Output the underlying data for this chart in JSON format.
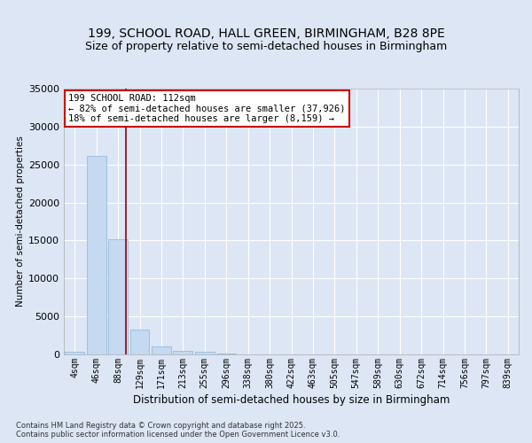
{
  "title1": "199, SCHOOL ROAD, HALL GREEN, BIRMINGHAM, B28 8PE",
  "title2": "Size of property relative to semi-detached houses in Birmingham",
  "xlabel": "Distribution of semi-detached houses by size in Birmingham",
  "ylabel": "Number of semi-detached properties",
  "footnote": "Contains HM Land Registry data © Crown copyright and database right 2025.\nContains public sector information licensed under the Open Government Licence v3.0.",
  "bin_labels": [
    "4sqm",
    "46sqm",
    "88sqm",
    "129sqm",
    "171sqm",
    "213sqm",
    "255sqm",
    "296sqm",
    "338sqm",
    "380sqm",
    "422sqm",
    "463sqm",
    "505sqm",
    "547sqm",
    "589sqm",
    "630sqm",
    "672sqm",
    "714sqm",
    "756sqm",
    "797sqm",
    "839sqm"
  ],
  "bar_values": [
    350,
    26100,
    15200,
    3300,
    1050,
    500,
    300,
    150,
    0,
    0,
    0,
    0,
    0,
    0,
    0,
    0,
    0,
    0,
    0,
    0,
    0
  ],
  "bar_color": "#c5d9f0",
  "bar_edge_color": "#8ab4d8",
  "bg_color": "#dce6f5",
  "grid_color": "#ffffff",
  "vline_x": 2.35,
  "vline_color": "#990000",
  "annotation_text": "199 SCHOOL ROAD: 112sqm\n← 82% of semi-detached houses are smaller (37,926)\n18% of semi-detached houses are larger (8,159) →",
  "annotation_box_color": "#ffffff",
  "annotation_box_edge": "#cc0000",
  "ylim": [
    0,
    35000
  ],
  "yticks": [
    0,
    5000,
    10000,
    15000,
    20000,
    25000,
    30000,
    35000
  ],
  "title_fontsize": 10,
  "subtitle_fontsize": 9,
  "annot_fontsize": 7.5
}
